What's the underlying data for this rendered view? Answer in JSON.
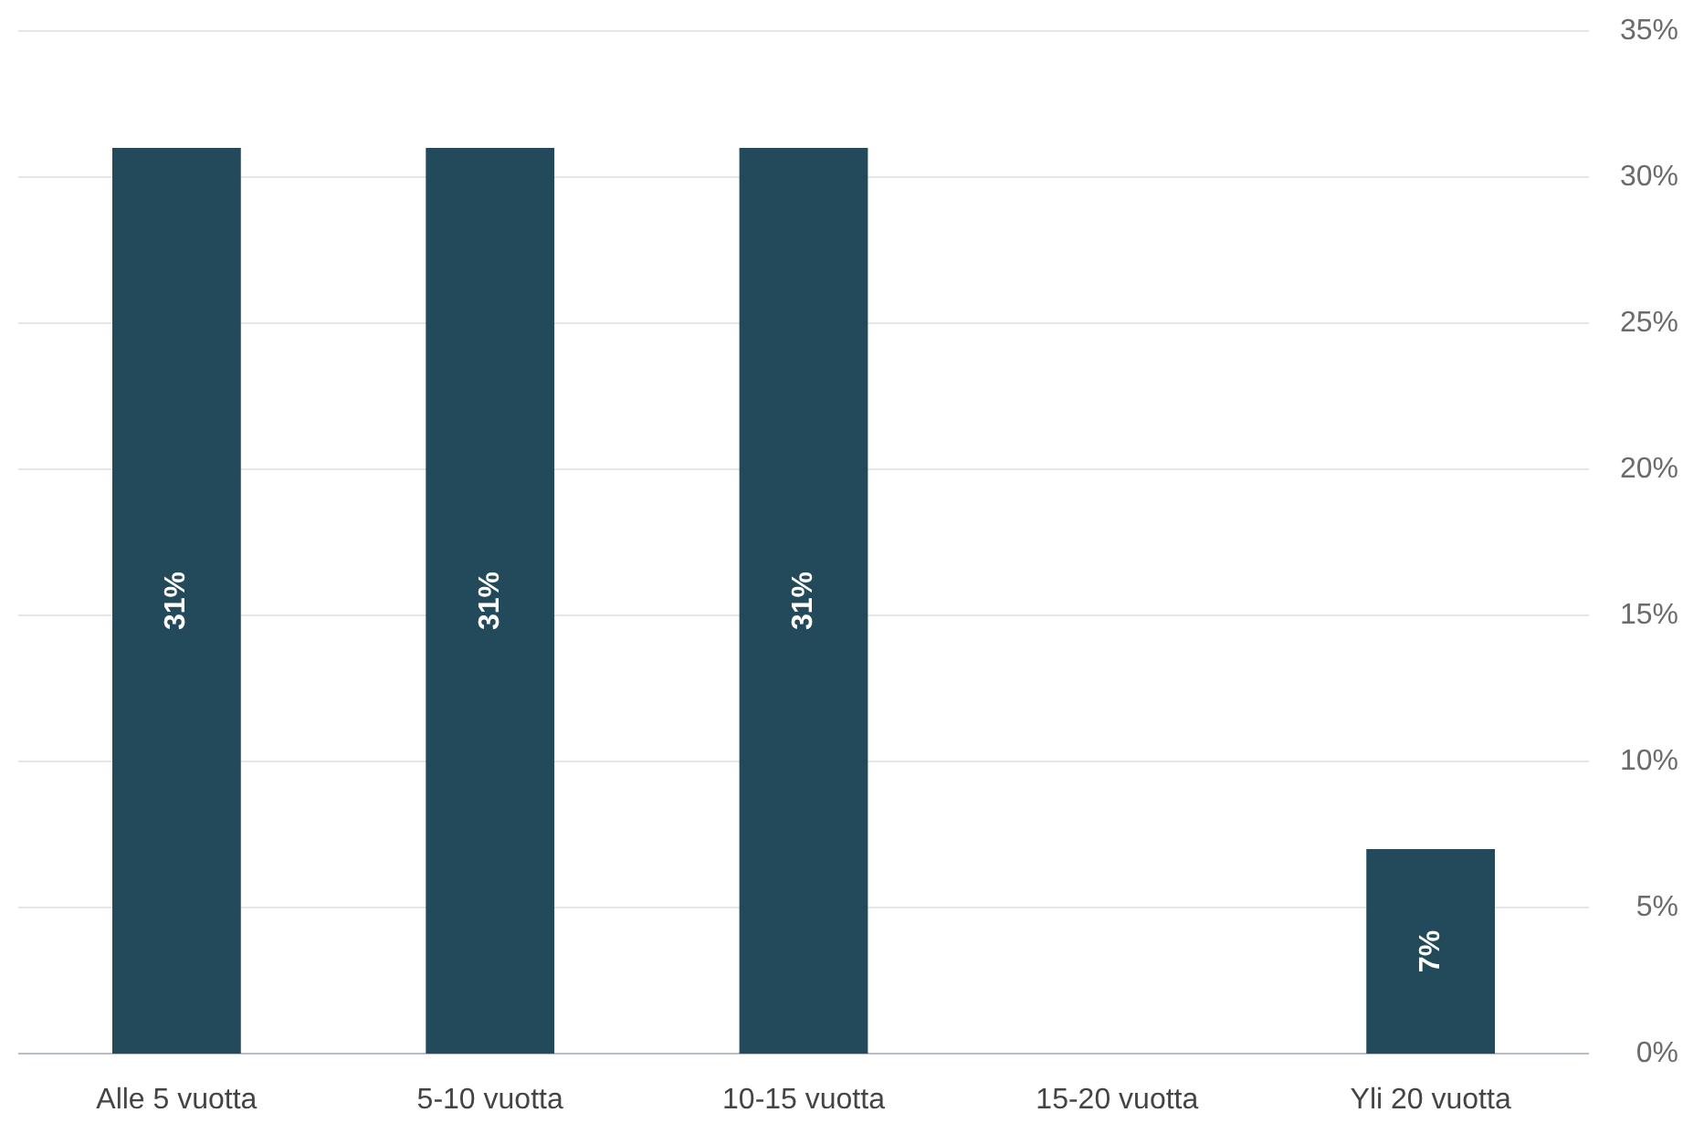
{
  "chart_data": {
    "type": "bar",
    "categories": [
      "Alle 5 vuotta",
      "5-10 vuotta",
      "10-15 vuotta",
      "15-20 vuotta",
      "Yli 20 vuotta"
    ],
    "values": [
      31,
      31,
      31,
      0,
      7
    ],
    "value_labels": [
      "31%",
      "31%",
      "31%",
      null,
      "7%"
    ],
    "color": "#224a5a",
    "ylim": [
      0,
      35
    ],
    "yticks": [
      {
        "value": 0,
        "label": "0%"
      },
      {
        "value": 5,
        "label": "5%"
      },
      {
        "value": 10,
        "label": "10%"
      },
      {
        "value": 15,
        "label": "15%"
      },
      {
        "value": 20,
        "label": "20%"
      },
      {
        "value": 25,
        "label": "25%"
      },
      {
        "value": 30,
        "label": "30%"
      },
      {
        "value": 35,
        "label": "35%"
      }
    ],
    "grid": "y"
  }
}
